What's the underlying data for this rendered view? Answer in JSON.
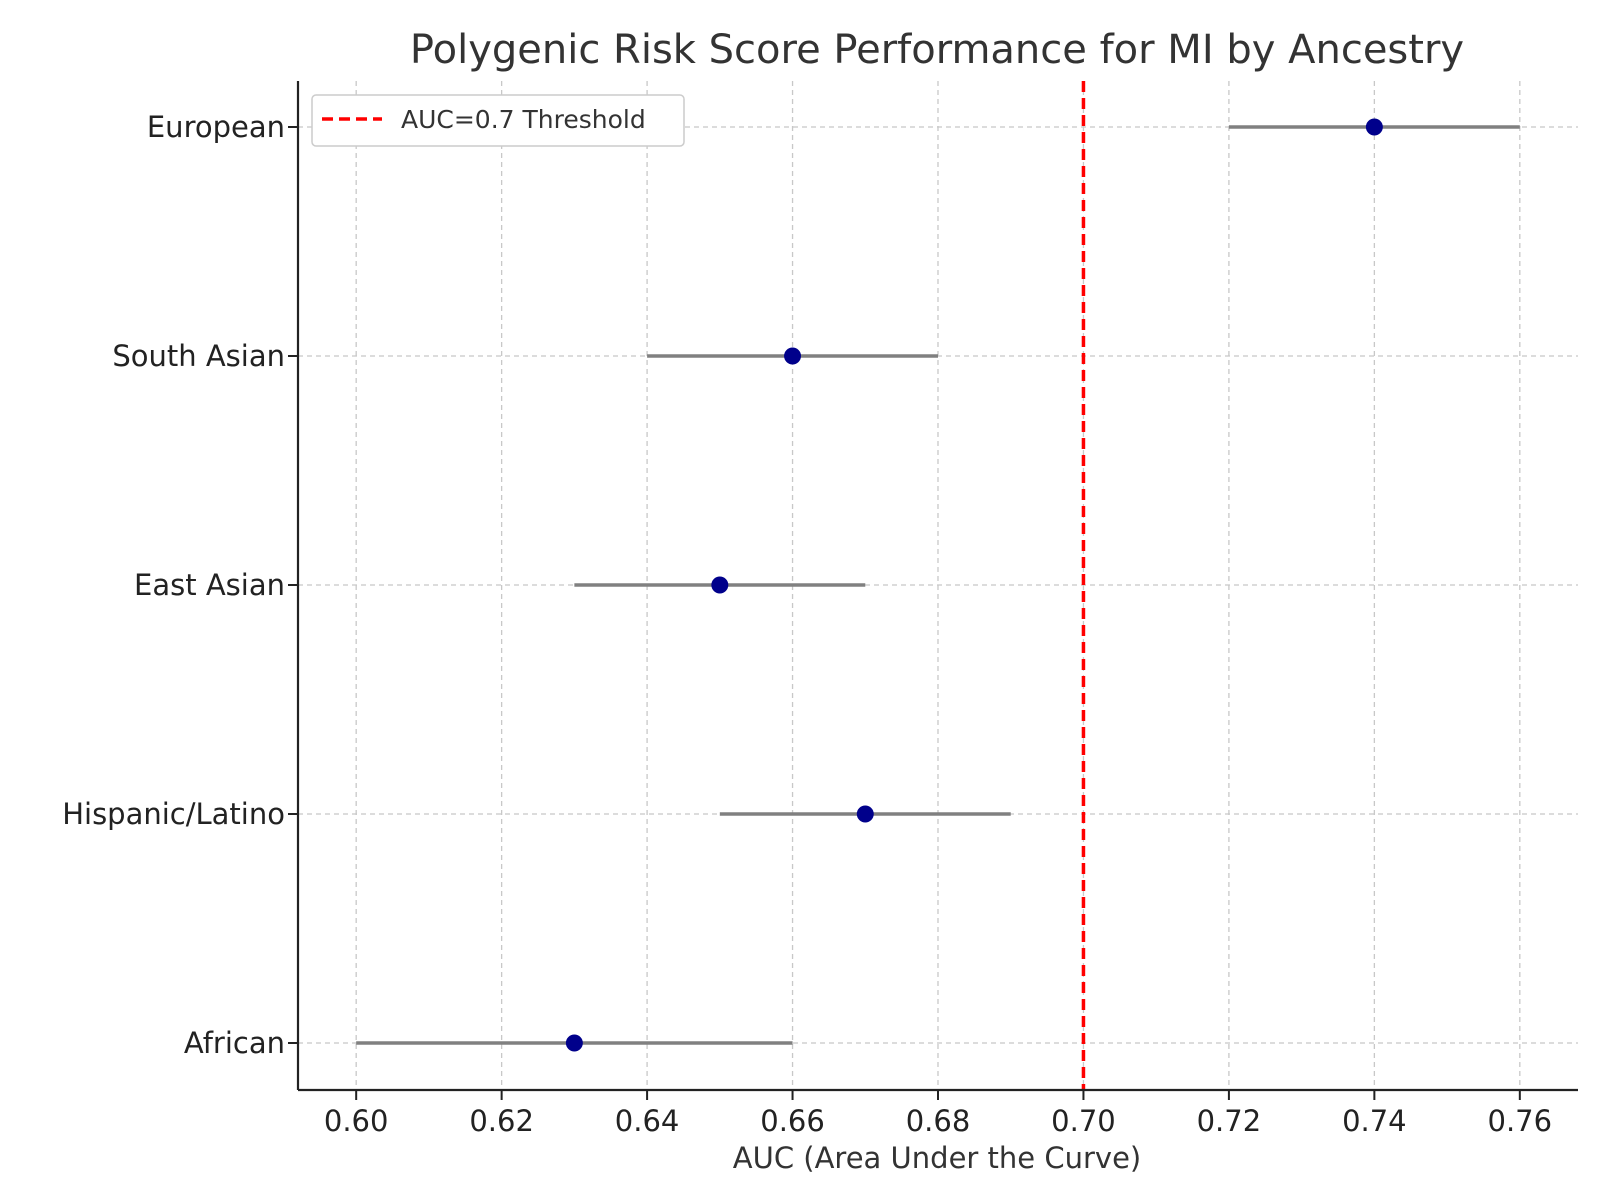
{
  "chart_data": {
    "type": "scatter",
    "title": "Polygenic Risk Score Performance for MI by Ancestry",
    "xlabel": "AUC (Area Under the Curve)",
    "ylabel": "",
    "xlim": [
      0.592,
      0.768
    ],
    "xticks": [
      "0.60",
      "0.62",
      "0.64",
      "0.66",
      "0.68",
      "0.70",
      "0.72",
      "0.74",
      "0.76"
    ],
    "categories": [
      "European",
      "South Asian",
      "East Asian",
      "Hispanic/Latino",
      "African"
    ],
    "values": [
      0.74,
      0.66,
      0.65,
      0.67,
      0.63
    ],
    "ci_lower": [
      0.72,
      0.64,
      0.63,
      0.65,
      0.6
    ],
    "ci_upper": [
      0.76,
      0.68,
      0.67,
      0.69,
      0.66
    ],
    "reference_line": {
      "x": 0.7,
      "label": "AUC=0.7 Threshold",
      "color": "#ff0000",
      "style": "dashed"
    },
    "point_color": "#00008b",
    "errorbar_color": "#808080",
    "grid": true,
    "legend_position": "top-left"
  }
}
